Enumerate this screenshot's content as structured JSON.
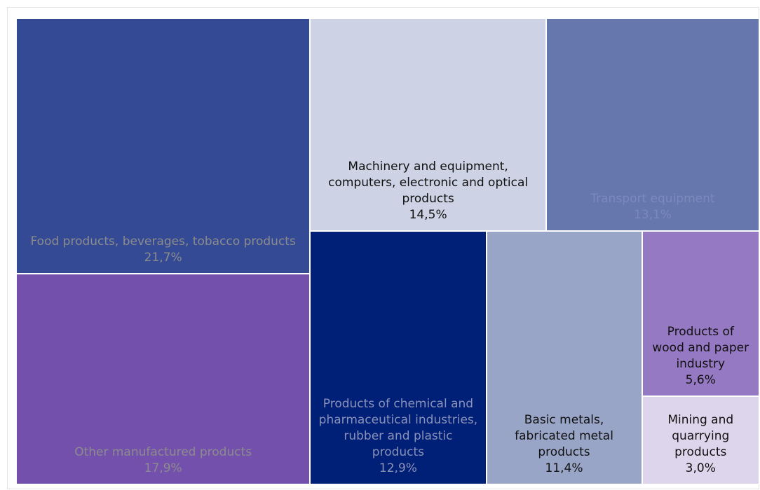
{
  "chart_data": {
    "type": "treemap",
    "categories": [
      "Food products, beverages, tobacco products",
      "Other manufactured products",
      "Machinery and equipment, computers, electronic and optical products",
      "Transport equipment",
      "Products of chemical and pharmaceutical industries, rubber and plastic products",
      "Basic metals, fabricated metal products",
      "Products of wood and paper industry",
      "Mining and quarrying products"
    ],
    "values": [
      21.7,
      17.9,
      14.5,
      13.1,
      12.9,
      11.4,
      5.6,
      3.0
    ],
    "value_labels": [
      "21,7%",
      "17,9%",
      "14,5%",
      "13,1%",
      "12,9%",
      "11,4%",
      "5,6%",
      "3,0%"
    ],
    "colors": [
      "#344a95",
      "#7450ad",
      "#cdd3e5",
      "#6677ad",
      "#001f77",
      "#99a5c7",
      "#9679c3",
      "#ddd5eb"
    ],
    "label_colors": [
      "#8c8c8c",
      "#8c8c8c",
      "#111111",
      "#7b89bd",
      "#8a92b8",
      "#111111",
      "#111111",
      "#111111"
    ]
  }
}
